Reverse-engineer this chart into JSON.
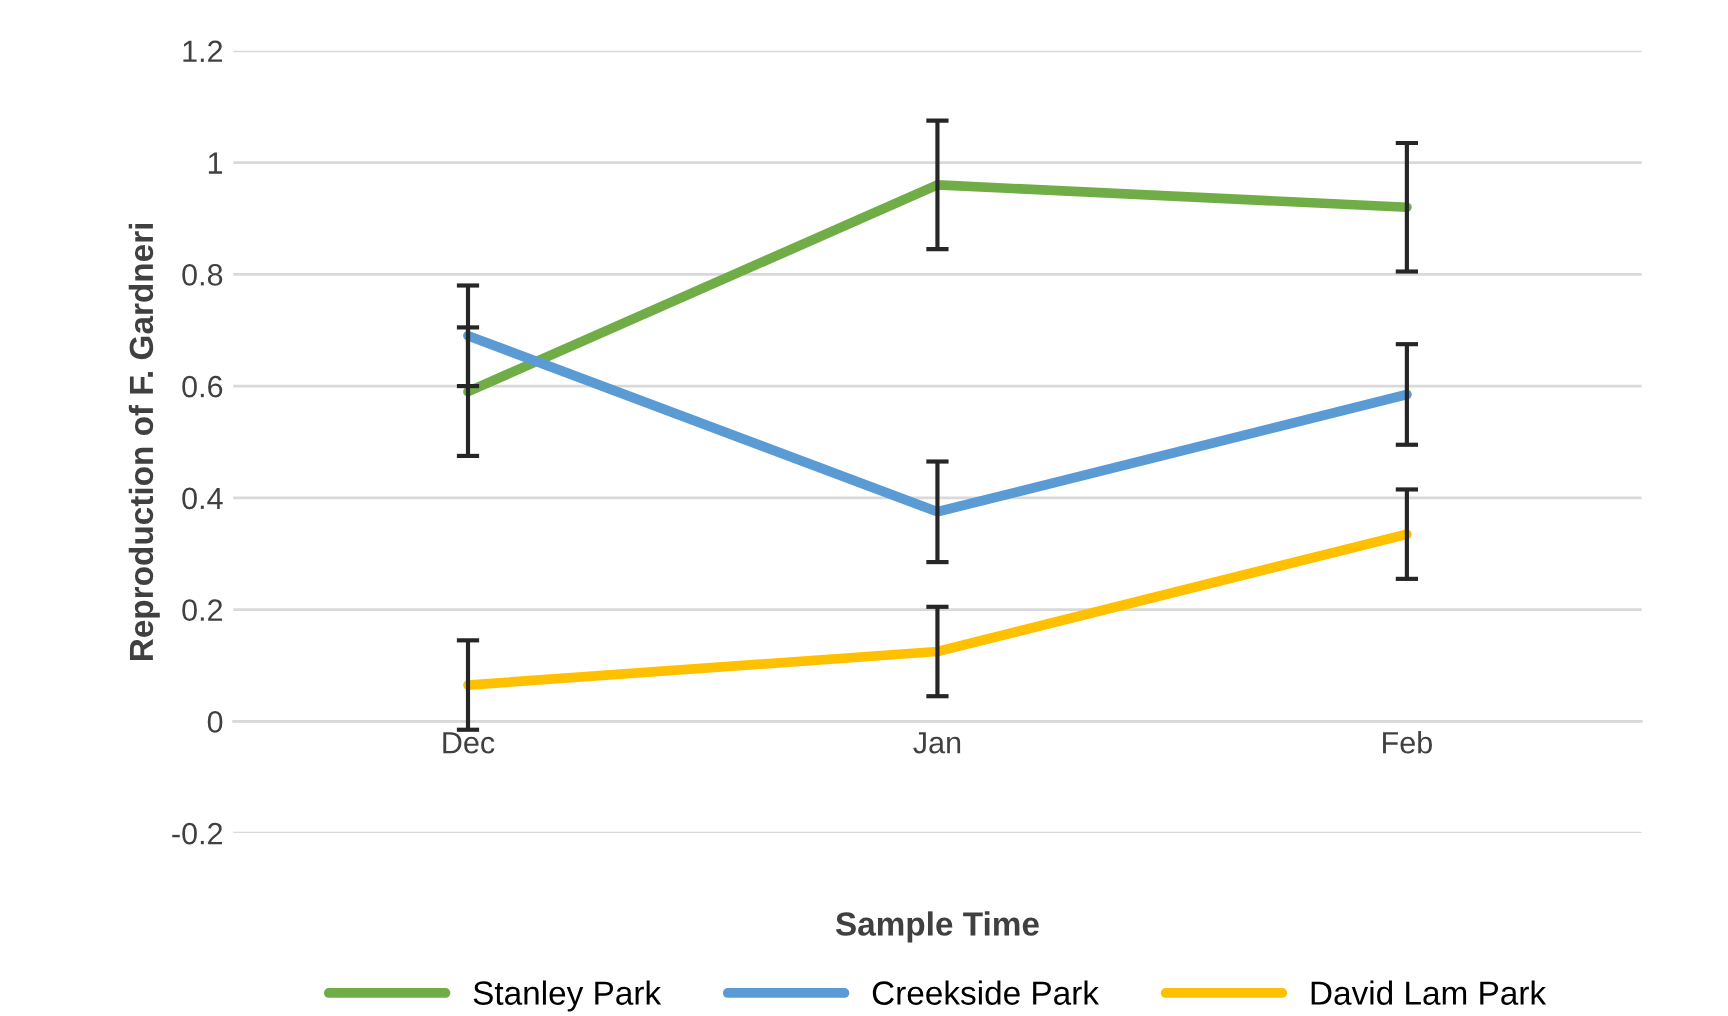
{
  "chart_data": {
    "type": "line",
    "xlabel": "Sample Time",
    "ylabel": "Reproduction of F. Gardneri",
    "categories": [
      "Dec",
      "Jan",
      "Feb"
    ],
    "series": [
      {
        "name": "Stanley Park",
        "color": "#70ad47",
        "values": [
          0.59,
          0.96,
          0.92
        ],
        "errors": [
          0.115,
          0.115,
          0.115
        ]
      },
      {
        "name": "Creekside Park",
        "color": "#5b9bd5",
        "values": [
          0.69,
          0.375,
          0.585
        ],
        "errors": [
          0.09,
          0.09,
          0.09
        ]
      },
      {
        "name": "David Lam Park",
        "color": "#ffc000",
        "values": [
          0.065,
          0.125,
          0.335
        ],
        "errors": [
          0.08,
          0.08,
          0.08
        ]
      }
    ],
    "ylim": [
      -0.2,
      1.2
    ],
    "yticks": [
      -0.2,
      0,
      0.2,
      0.4,
      0.6,
      0.8,
      1,
      1.2
    ],
    "grid": "y",
    "legend": "bottom",
    "marker": "none",
    "line_style": "solid"
  }
}
